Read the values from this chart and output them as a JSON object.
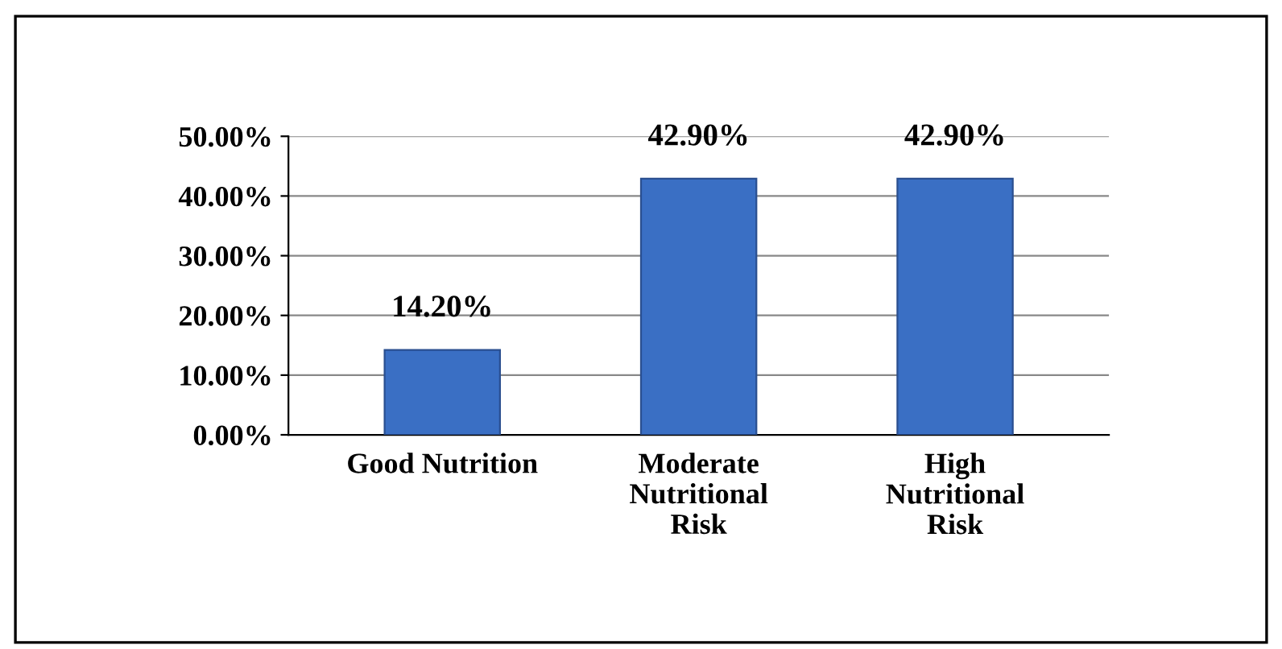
{
  "chart_data": {
    "type": "bar",
    "categories": [
      "Good Nutrition",
      "Moderate\nNutritional\nRisk",
      "High\nNutritional\nRisk"
    ],
    "values": [
      14.2,
      42.9,
      42.9
    ],
    "value_labels": [
      "14.20%",
      "42.90%",
      "42.90%"
    ],
    "color": "#3a6fc4",
    "ylim": [
      0,
      50
    ],
    "yticks": [
      {
        "value": 0,
        "label": "0.00%"
      },
      {
        "value": 10,
        "label": "10.00%"
      },
      {
        "value": 20,
        "label": "20.00%"
      },
      {
        "value": 30,
        "label": "30.00%"
      },
      {
        "value": 40,
        "label": "40.00%"
      },
      {
        "value": 50,
        "label": "50.00%"
      }
    ],
    "grid": "y",
    "legend": false
  }
}
